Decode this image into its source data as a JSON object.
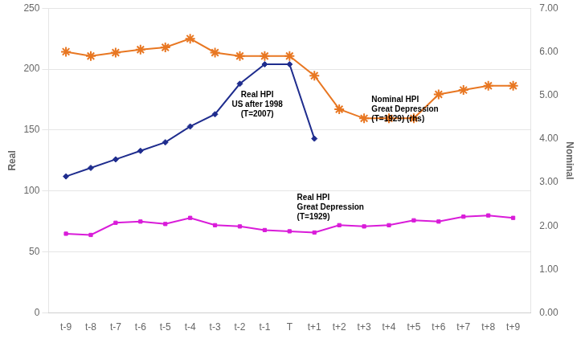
{
  "chart_data": {
    "type": "line",
    "x": [
      -9,
      -8,
      -7,
      -6,
      -5,
      -4,
      -3,
      -2,
      -1,
      0,
      1,
      2,
      3,
      4,
      5,
      6,
      7,
      8,
      9
    ],
    "xlim": [
      -9.7,
      9.7
    ],
    "xticks": [
      {
        "value": -9,
        "label": "t-9"
      },
      {
        "value": -8,
        "label": "t-8"
      },
      {
        "value": -7,
        "label": "t-7"
      },
      {
        "value": -6,
        "label": "t-6"
      },
      {
        "value": -5,
        "label": "t-5"
      },
      {
        "value": -4,
        "label": "t-4"
      },
      {
        "value": -3,
        "label": "t-3"
      },
      {
        "value": -2,
        "label": "t-2"
      },
      {
        "value": -1,
        "label": "t-1"
      },
      {
        "value": 0,
        "label": "T"
      },
      {
        "value": 1,
        "label": "t+1"
      },
      {
        "value": 2,
        "label": "t+2"
      },
      {
        "value": 3,
        "label": "t+3"
      },
      {
        "value": 4,
        "label": "t+4"
      },
      {
        "value": 5,
        "label": "t+5"
      },
      {
        "value": 6,
        "label": "t+6"
      },
      {
        "value": 7,
        "label": "t+7"
      },
      {
        "value": 8,
        "label": "t+8"
      },
      {
        "value": 9,
        "label": "t+9"
      }
    ],
    "ylabel": "Real",
    "ylim": [
      0,
      250
    ],
    "yticks": [
      0,
      50,
      100,
      150,
      200,
      250
    ],
    "y2label": "Nominal",
    "y2lim": [
      0.0,
      7.0
    ],
    "y2ticks": [
      {
        "value": 0.0,
        "label": "0.00"
      },
      {
        "value": 1.0,
        "label": "1.00"
      },
      {
        "value": 2.0,
        "label": "2.00"
      },
      {
        "value": 3.0,
        "label": "3.00"
      },
      {
        "value": 4.0,
        "label": "4.00"
      },
      {
        "value": 5.0,
        "label": "5.00"
      },
      {
        "value": 6.0,
        "label": "6.00"
      },
      {
        "value": 7.0,
        "label": "7.00"
      }
    ],
    "grid": true,
    "series": [
      {
        "color": "#1f2d8e",
        "marker": "diamond",
        "values": [
          112,
          119,
          126,
          133,
          140,
          153,
          163,
          188,
          204,
          204,
          143,
          null,
          null,
          null,
          null,
          null,
          null,
          null,
          null
        ]
      },
      {
        "color": "#d91cd9",
        "marker": "square",
        "values": [
          65,
          64,
          74,
          75,
          73,
          78,
          72,
          71,
          68,
          67,
          66,
          72,
          71,
          72,
          76,
          75,
          79,
          80,
          78
        ]
      },
      {
        "color": "#e87722",
        "marker": "star",
        "axis": "y2",
        "values": [
          6.0,
          5.9,
          5.98,
          6.05,
          6.1,
          6.3,
          5.98,
          5.9,
          5.9,
          5.9,
          5.45,
          4.68,
          4.47,
          4.47,
          4.47,
          5.02,
          5.12,
          5.22,
          5.22
        ]
      }
    ],
    "annotations": [
      {
        "text": "Real HPI\nUS after 1998\n(T=2007)",
        "x": -1.3,
        "y": 182
      },
      {
        "text": "Real HPI\nGreat Depression\n(T=1929)",
        "x": 0.3,
        "y": 98
      },
      {
        "text": "Nominal HPI\nGreat Depression\n(T=1929) (rhs)",
        "x": 3.3,
        "y": 178
      }
    ]
  }
}
